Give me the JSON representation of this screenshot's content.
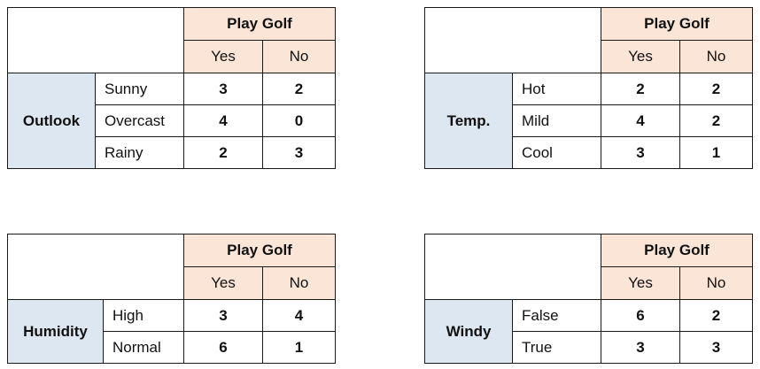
{
  "tables": [
    {
      "feature": "Outlook",
      "target": "Play Golf",
      "classes": [
        "Yes",
        "No"
      ],
      "rows": [
        {
          "value": "Sunny",
          "yes": "3",
          "no": "2"
        },
        {
          "value": "Overcast",
          "yes": "4",
          "no": "0"
        },
        {
          "value": "Rainy",
          "yes": "2",
          "no": "3"
        }
      ]
    },
    {
      "feature": "Temp.",
      "target": "Play Golf",
      "classes": [
        "Yes",
        "No"
      ],
      "rows": [
        {
          "value": "Hot",
          "yes": "2",
          "no": "2"
        },
        {
          "value": "Mild",
          "yes": "4",
          "no": "2"
        },
        {
          "value": "Cool",
          "yes": "3",
          "no": "1"
        }
      ]
    },
    {
      "feature": "Humidity",
      "target": "Play Golf",
      "classes": [
        "Yes",
        "No"
      ],
      "rows": [
        {
          "value": "High",
          "yes": "3",
          "no": "4"
        },
        {
          "value": "Normal",
          "yes": "6",
          "no": "1"
        }
      ]
    },
    {
      "feature": "Windy",
      "target": "Play Golf",
      "classes": [
        "Yes",
        "No"
      ],
      "rows": [
        {
          "value": "False",
          "yes": "6",
          "no": "2"
        },
        {
          "value": "True",
          "yes": "3",
          "no": "3"
        }
      ]
    }
  ],
  "colors": {
    "header_fill": "#fbe5d6",
    "feature_fill": "#dde7f1",
    "border": "#1a1a1a"
  }
}
